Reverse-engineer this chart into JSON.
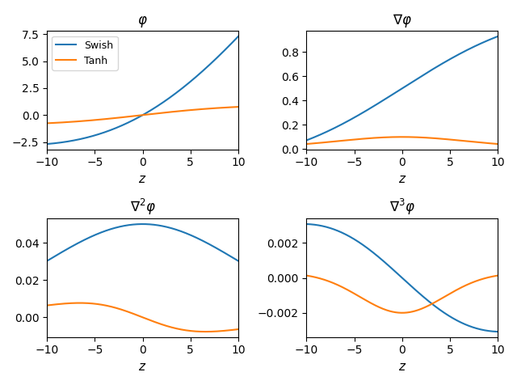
{
  "title_00": "$\\varphi$",
  "title_01": "$\\nabla\\varphi$",
  "title_10": "$\\nabla^2\\varphi$",
  "title_11": "$\\nabla^3\\varphi$",
  "xlabel": "$z$",
  "x_range": [
    -10,
    10
  ],
  "swish_color": "#1f77b4",
  "tanh_color": "#ff7f0e",
  "swish_label": "Swish",
  "tanh_label": "Tanh",
  "n_points": 2000,
  "beta": 0.1,
  "figsize": [
    6.4,
    4.76
  ],
  "dpi": 100
}
